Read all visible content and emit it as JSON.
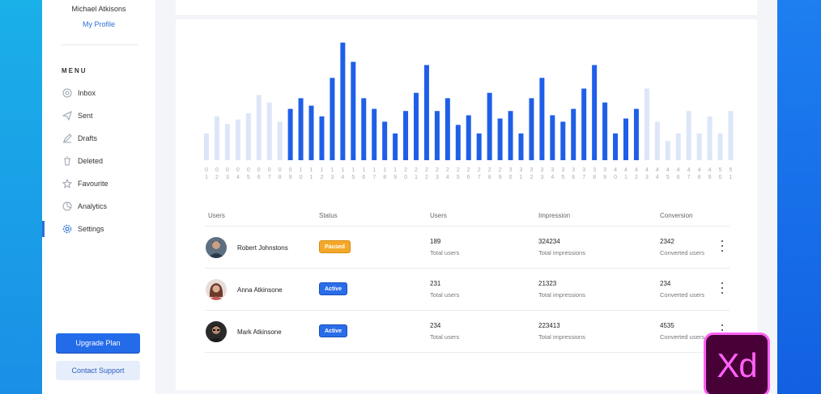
{
  "profile": {
    "name": "Michael Atkisons",
    "link": "My Profile"
  },
  "menu": {
    "title": "MENU",
    "items": [
      {
        "label": "Inbox",
        "icon": "at-icon"
      },
      {
        "label": "Sent",
        "icon": "send-icon"
      },
      {
        "label": "Drafts",
        "icon": "pencil-icon"
      },
      {
        "label": "Deleted",
        "icon": "trash-icon"
      },
      {
        "label": "Favourite",
        "icon": "star-icon"
      },
      {
        "label": "Analytics",
        "icon": "pie-icon"
      },
      {
        "label": "Settings",
        "icon": "gear-icon",
        "active": true
      }
    ]
  },
  "buttons": {
    "upgrade": "Upgrade Plan",
    "support": "Contact Support"
  },
  "chart_data": {
    "type": "bar",
    "categories": [
      "01",
      "02",
      "03",
      "04",
      "05",
      "06",
      "07",
      "08",
      "09",
      "10",
      "11",
      "12",
      "13",
      "14",
      "15",
      "16",
      "17",
      "18",
      "19",
      "20",
      "21",
      "22",
      "23",
      "24",
      "25",
      "26",
      "27",
      "28",
      "29",
      "30",
      "31",
      "32",
      "33",
      "34",
      "35",
      "36",
      "37",
      "38",
      "39",
      "40",
      "41",
      "42",
      "43",
      "44",
      "45",
      "46",
      "47",
      "48",
      "49",
      "50",
      "51"
    ],
    "values": [
      25,
      41,
      34,
      38,
      44,
      61,
      54,
      36,
      48,
      58,
      51,
      41,
      77,
      110,
      92,
      58,
      48,
      36,
      25,
      46,
      63,
      89,
      46,
      58,
      33,
      42,
      25,
      63,
      39,
      46,
      25,
      58,
      77,
      42,
      36,
      48,
      67,
      89,
      54,
      25,
      39,
      48,
      67,
      36,
      18,
      25,
      46,
      25,
      41,
      25,
      46
    ],
    "highlight_range": [
      "09",
      "42"
    ],
    "colors": {
      "active": "#1f5fe8",
      "muted": "#dce6f8"
    }
  },
  "table": {
    "headers": [
      "Users",
      "Status",
      "Users",
      "Impression",
      "Conversion"
    ],
    "rows": [
      {
        "name": "Robert Johnstons",
        "status": "Paused",
        "users": "189",
        "users_sub": "Total users",
        "impressions": "324234",
        "impressions_sub": "Total impressions",
        "conversion": "2342",
        "conversion_sub": "Converted users"
      },
      {
        "name": "Anna Atkinsone",
        "status": "Active",
        "users": "231",
        "users_sub": "Total users",
        "impressions": "21323",
        "impressions_sub": "Total impressions",
        "conversion": "234",
        "conversion_sub": "Converted users"
      },
      {
        "name": "Mark Atkinsone",
        "status": "Active",
        "users": "234",
        "users_sub": "Total users",
        "impressions": "223413",
        "impressions_sub": "Total impressions",
        "conversion": "4535",
        "conversion_sub": "Converted users"
      }
    ]
  },
  "badge_logo": {
    "text": "Xd"
  }
}
